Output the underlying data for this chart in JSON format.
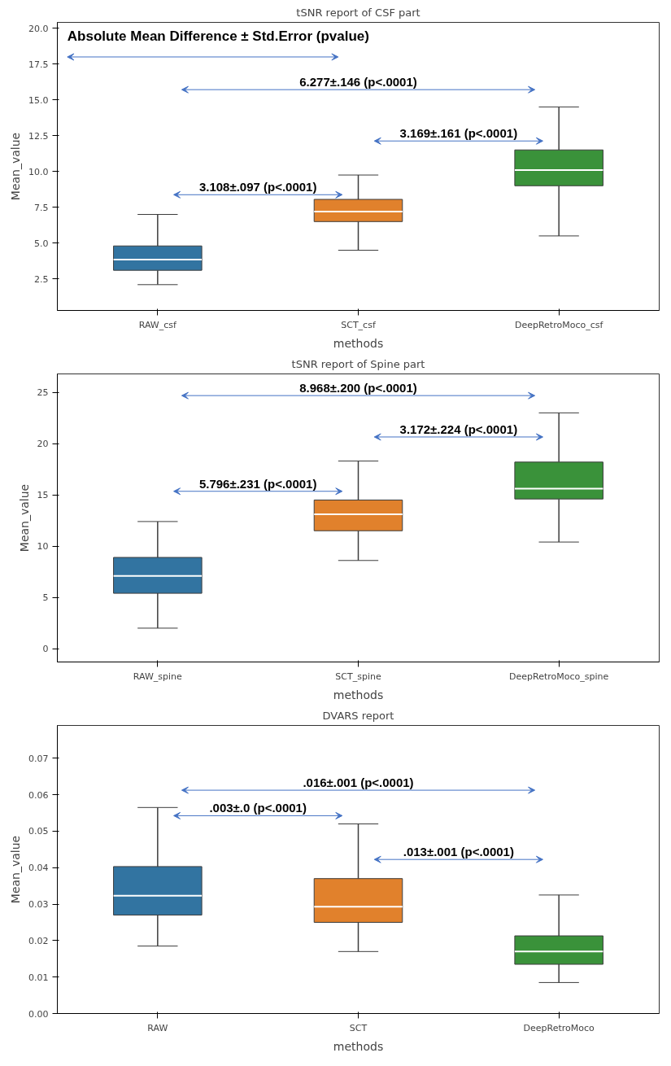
{
  "chart_data": [
    {
      "type": "box",
      "title": "tSNR report of CSF part",
      "xlabel": "methods",
      "ylabel": "Mean_value",
      "categories": [
        "RAW_csf",
        "SCT_csf",
        "DeepRetroMoco_csf"
      ],
      "colors": [
        "#3274a1",
        "#e1812c",
        "#3a923a"
      ],
      "ylim": [
        0.3,
        20.4
      ],
      "yticks": [
        {
          "value": 2.5,
          "label": "2.5"
        },
        {
          "value": 5,
          "label": "5.0"
        },
        {
          "value": 7.5,
          "label": "7.5"
        },
        {
          "value": 10,
          "label": "10.0"
        },
        {
          "value": 12.5,
          "label": "12.5"
        },
        {
          "value": 15,
          "label": "15.0"
        },
        {
          "value": 17.5,
          "label": "17.5"
        },
        {
          "value": 20,
          "label": "20.0"
        }
      ],
      "grid": false,
      "boxes": [
        {
          "low": 2.1,
          "q1": 3.1,
          "median": 3.85,
          "q3": 4.8,
          "high": 7.0
        },
        {
          "low": 4.5,
          "q1": 6.5,
          "median": 7.2,
          "q3": 8.05,
          "high": 9.75
        },
        {
          "low": 5.5,
          "q1": 9.0,
          "median": 10.1,
          "q3": 11.5,
          "high": 14.5
        }
      ],
      "annotations": [
        "Absolute Mean Difference ± Std.Error (pvalue)",
        "3.108±.097 (p<.0001)",
        "3.169±.161 (p<.0001)",
        "6.277±.146 (p<.0001)"
      ]
    },
    {
      "type": "box",
      "title": "tSNR report of Spine part",
      "xlabel": "methods",
      "ylabel": "Mean_value",
      "categories": [
        "RAW_spine",
        "SCT_spine",
        "DeepRetroMoco_spine"
      ],
      "colors": [
        "#3274a1",
        "#e1812c",
        "#3a923a"
      ],
      "ylim": [
        -1.3,
        26.8
      ],
      "yticks": [
        0,
        5,
        10,
        15,
        20,
        25
      ],
      "grid": false,
      "boxes": [
        {
          "low": 2.0,
          "q1": 5.4,
          "median": 7.1,
          "q3": 8.9,
          "high": 12.4
        },
        {
          "low": 8.6,
          "q1": 11.5,
          "median": 13.1,
          "q3": 14.5,
          "high": 18.3
        },
        {
          "low": 10.4,
          "q1": 14.6,
          "median": 15.6,
          "q3": 18.2,
          "high": 23.0
        }
      ],
      "annotations": [
        "5.796±.231 (p<.0001)",
        "3.172±.224 (p<.0001)",
        "8.968±.200 (p<.0001)"
      ]
    },
    {
      "type": "box",
      "title": "DVARS report",
      "xlabel": "methods",
      "ylabel": "Mean_value",
      "categories": [
        "RAW",
        "SCT",
        "DeepRetroMoco"
      ],
      "colors": [
        "#3274a1",
        "#e1812c",
        "#3a923a"
      ],
      "ylim": [
        0,
        0.079
      ],
      "yticks": [
        {
          "value": 0,
          "label": "0.00"
        },
        {
          "value": 0.01,
          "label": "0.01"
        },
        {
          "value": 0.02,
          "label": "0.02"
        },
        {
          "value": 0.03,
          "label": "0.03"
        },
        {
          "value": 0.04,
          "label": "0.04"
        },
        {
          "value": 0.05,
          "label": "0.05"
        },
        {
          "value": 0.06,
          "label": "0.06"
        },
        {
          "value": 0.07,
          "label": "0.07"
        }
      ],
      "grid": false,
      "boxes": [
        {
          "low": 0.0185,
          "q1": 0.027,
          "median": 0.0323,
          "q3": 0.0403,
          "high": 0.0565
        },
        {
          "low": 0.017,
          "q1": 0.025,
          "median": 0.0293,
          "q3": 0.037,
          "high": 0.052
        },
        {
          "low": 0.0085,
          "q1": 0.0135,
          "median": 0.017,
          "q3": 0.0213,
          "high": 0.0325
        }
      ],
      "annotations": [
        ".003±.0 (p<.0001)",
        ".013±.001 (p<.0001)",
        ".016±.001 (p<.0001)"
      ]
    }
  ]
}
